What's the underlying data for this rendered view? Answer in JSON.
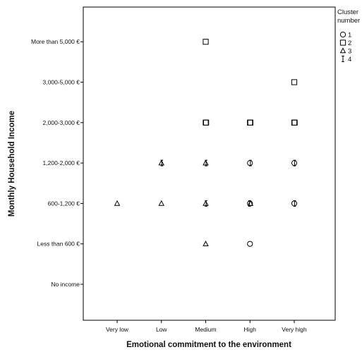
{
  "chart_data": {
    "type": "scatter",
    "xlabel": "Emotional commitment to the environment",
    "ylabel": "Monthly Household Income",
    "x_categories": [
      "Very low",
      "Low",
      "Medium",
      "High",
      "Very high"
    ],
    "y_categories": [
      "No income",
      "Less than 600 €",
      "600-1,200 €",
      "1,200-2,000 €",
      "2,000-3,000 €",
      "3,000-5,000 €",
      "More than 5,000 €"
    ],
    "grid": false,
    "legend": {
      "title_lines": [
        "Cluster",
        "number"
      ],
      "placement": "right",
      "entries": [
        {
          "label": "1",
          "marker": "circle"
        },
        {
          "label": "2",
          "marker": "square"
        },
        {
          "label": "3",
          "marker": "triangle"
        },
        {
          "label": "4",
          "marker": "ibeam"
        }
      ]
    },
    "points": [
      {
        "x": "Very low",
        "y": "600-1,200 €",
        "clusters": [
          3
        ]
      },
      {
        "x": "Low",
        "y": "600-1,200 €",
        "clusters": [
          3
        ]
      },
      {
        "x": "Low",
        "y": "1,200-2,000 €",
        "clusters": [
          3,
          4
        ]
      },
      {
        "x": "Medium",
        "y": "Less than 600 €",
        "clusters": [
          3
        ]
      },
      {
        "x": "Medium",
        "y": "600-1,200 €",
        "clusters": [
          3,
          4
        ]
      },
      {
        "x": "Medium",
        "y": "1,200-2,000 €",
        "clusters": [
          3,
          4
        ]
      },
      {
        "x": "Medium",
        "y": "2,000-3,000 €",
        "clusters": [
          2,
          2
        ]
      },
      {
        "x": "Medium",
        "y": "More than 5,000 €",
        "clusters": [
          2
        ]
      },
      {
        "x": "High",
        "y": "Less than 600 €",
        "clusters": [
          1
        ]
      },
      {
        "x": "High",
        "y": "600-1,200 €",
        "clusters": [
          1,
          3,
          4
        ]
      },
      {
        "x": "High",
        "y": "1,200-2,000 €",
        "clusters": [
          1,
          4
        ]
      },
      {
        "x": "High",
        "y": "2,000-3,000 €",
        "clusters": [
          2,
          2
        ]
      },
      {
        "x": "Very high",
        "y": "600-1,200 €",
        "clusters": [
          1,
          4
        ]
      },
      {
        "x": "Very high",
        "y": "1,200-2,000 €",
        "clusters": [
          1,
          4
        ]
      },
      {
        "x": "Very high",
        "y": "2,000-3,000 €",
        "clusters": [
          2,
          2
        ]
      },
      {
        "x": "Very high",
        "y": "3,000-5,000 €",
        "clusters": [
          2
        ]
      }
    ]
  }
}
